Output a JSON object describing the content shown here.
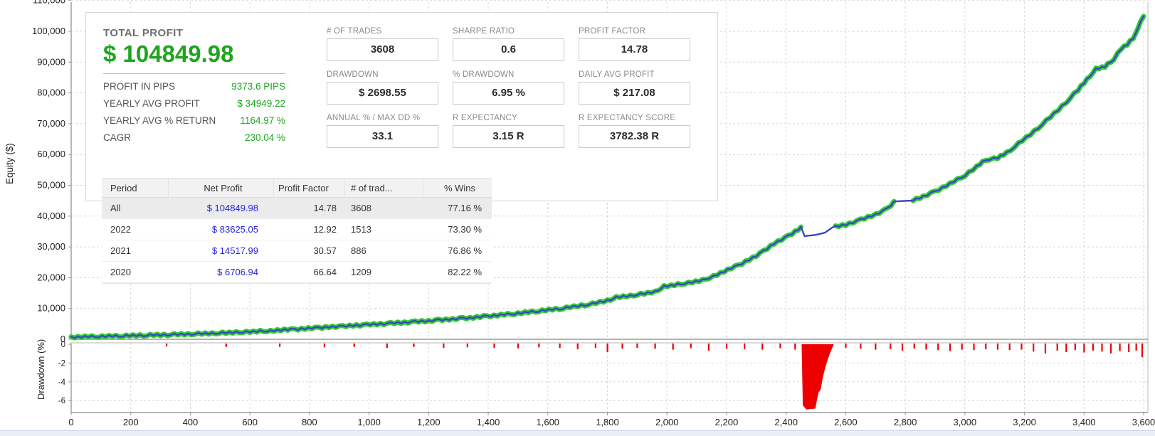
{
  "colors": {
    "profit_green": "#1ea51e",
    "net_profit_blue": "#2525dd",
    "curve_green": "#33cc33",
    "curve_blue": "#3747c4",
    "drawdown_red": "#ee0000",
    "grid_gray": "#d8d8d8",
    "axis_gray": "#9a9a9a",
    "text_dark": "#222222"
  },
  "stats": {
    "total_profit": {
      "label": "TOTAL PROFIT",
      "value": "$ 104849.98"
    },
    "detail_rows": [
      {
        "label": "PROFIT IN PIPS",
        "value": "9373.6 PIPS"
      },
      {
        "label": "YEARLY AVG PROFIT",
        "value": "$ 34949.22"
      },
      {
        "label": "YEARLY AVG % RETURN",
        "value": "1164.97 %"
      },
      {
        "label": "CAGR",
        "value": "230.04 %"
      }
    ],
    "boxes": [
      {
        "label": "# OF TRADES",
        "value": "3608"
      },
      {
        "label": "SHARPE RATIO",
        "value": "0.6"
      },
      {
        "label": "PROFIT FACTOR",
        "value": "14.78"
      },
      {
        "label": "DRAWDOWN",
        "value": "$ 2698.55"
      },
      {
        "label": "% DRAWDOWN",
        "value": "6.95 %"
      },
      {
        "label": "DAILY AVG PROFIT",
        "value": "$ 217.08"
      },
      {
        "label": "ANNUAL % / MAX DD %",
        "value": "33.1"
      },
      {
        "label": "R EXPECTANCY",
        "value": "3.15 R"
      },
      {
        "label": "R EXPECTANCY SCORE",
        "value": "3782.38 R"
      }
    ]
  },
  "table": {
    "columns": [
      "Period",
      "Net Profit",
      "Profit Factor",
      "# of trad...",
      "% Wins"
    ],
    "rows": [
      {
        "period": "All",
        "net_profit": "$ 104849.98",
        "profit_factor": "14.78",
        "trades": "3608",
        "wins": "77.16 %",
        "selected": true
      },
      {
        "period": "2022",
        "net_profit": "$ 83625.05",
        "profit_factor": "12.92",
        "trades": "1513",
        "wins": "73.30 %",
        "selected": false
      },
      {
        "period": "2021",
        "net_profit": "$ 14517.99",
        "profit_factor": "30.57",
        "trades": "886",
        "wins": "76.86 %",
        "selected": false
      },
      {
        "period": "2020",
        "net_profit": "$ 6706.94",
        "profit_factor": "66.64",
        "trades": "1209",
        "wins": "82.22 %",
        "selected": false
      }
    ]
  },
  "chart_data": {
    "type": "line",
    "title": "",
    "xlabel": "",
    "xlim": [
      0,
      3600
    ],
    "xticks": [
      0,
      200,
      400,
      600,
      800,
      1000,
      1200,
      1400,
      1600,
      1800,
      2000,
      2200,
      2400,
      2600,
      2800,
      3000,
      3200,
      3400,
      3600
    ],
    "xtick_labels": [
      "0",
      "200",
      "400",
      "600",
      "800",
      "1,000",
      "1,200",
      "1,400",
      "1,600",
      "1,800",
      "2,000",
      "2,200",
      "2,400",
      "2,600",
      "2,800",
      "3,000",
      "3,200",
      "3,400",
      "3,600"
    ],
    "equity_panel": {
      "ylabel": "Equity ($)",
      "ylim": [
        0,
        110000
      ],
      "yticks": [
        0,
        10000,
        20000,
        30000,
        40000,
        50000,
        60000,
        70000,
        80000,
        90000,
        100000,
        110000
      ],
      "ytick_labels": [
        "0",
        "10,000",
        "20,000",
        "30,000",
        "40,000",
        "50,000",
        "60,000",
        "70,000",
        "80,000",
        "90,000",
        "100,000",
        "110,000"
      ],
      "grid": true
    },
    "equity_curve": {
      "series_name": "Equity",
      "points": [
        [
          0,
          700
        ],
        [
          150,
          1000
        ],
        [
          300,
          1400
        ],
        [
          450,
          1900
        ],
        [
          600,
          2500
        ],
        [
          750,
          3200
        ],
        [
          900,
          4100
        ],
        [
          1050,
          5000
        ],
        [
          1200,
          6000
        ],
        [
          1350,
          7100
        ],
        [
          1500,
          8400
        ],
        [
          1650,
          10000
        ],
        [
          1750,
          11500
        ],
        [
          1800,
          12600
        ],
        [
          1830,
          13600
        ],
        [
          1900,
          14500
        ],
        [
          1960,
          15500
        ],
        [
          1990,
          17200
        ],
        [
          2060,
          18200
        ],
        [
          2120,
          19200
        ],
        [
          2180,
          21500
        ],
        [
          2240,
          24000
        ],
        [
          2300,
          27000
        ],
        [
          2360,
          31000
        ],
        [
          2420,
          34200
        ],
        [
          2450,
          36200
        ],
        [
          2462,
          33500
        ],
        [
          2500,
          33900
        ],
        [
          2530,
          34600
        ],
        [
          2555,
          36300
        ],
        [
          2600,
          37200
        ],
        [
          2650,
          38800
        ],
        [
          2700,
          40600
        ],
        [
          2740,
          42400
        ],
        [
          2762,
          44600
        ],
        [
          2770,
          44800
        ],
        [
          2815,
          45000
        ],
        [
          2860,
          46300
        ],
        [
          2900,
          48000
        ],
        [
          2950,
          50500
        ],
        [
          3000,
          53200
        ],
        [
          3040,
          56000
        ],
        [
          3070,
          58300
        ],
        [
          3110,
          58800
        ],
        [
          3140,
          60500
        ],
        [
          3180,
          63500
        ],
        [
          3220,
          66500
        ],
        [
          3260,
          69800
        ],
        [
          3300,
          73300
        ],
        [
          3340,
          77000
        ],
        [
          3380,
          81000
        ],
        [
          3410,
          84500
        ],
        [
          3440,
          87800
        ],
        [
          3470,
          88600
        ],
        [
          3500,
          91000
        ],
        [
          3525,
          94500
        ],
        [
          3545,
          95800
        ],
        [
          3565,
          97800
        ],
        [
          3580,
          101000
        ],
        [
          3600,
          105200
        ]
      ],
      "drawdown_gaps": [
        [
          2455,
          2558
        ],
        [
          2766,
          2818
        ]
      ]
    },
    "drawdown_panel": {
      "ylabel": "Drawdown (%)",
      "ylim": [
        -7.2,
        0
      ],
      "yticks": [
        0,
        -2,
        -4,
        -6
      ],
      "ytick_labels": [
        "0",
        "-2",
        "-4",
        "-6"
      ],
      "grid": true
    },
    "drawdown_spikes": [
      [
        320,
        0.15
      ],
      [
        520,
        0.2
      ],
      [
        700,
        0.2
      ],
      [
        850,
        0.25
      ],
      [
        950,
        0.2
      ],
      [
        1060,
        0.3
      ],
      [
        1150,
        0.2
      ],
      [
        1250,
        0.3
      ],
      [
        1330,
        0.25
      ],
      [
        1420,
        0.3
      ],
      [
        1500,
        0.35
      ],
      [
        1570,
        0.25
      ],
      [
        1640,
        0.3
      ],
      [
        1700,
        0.45
      ],
      [
        1760,
        0.3
      ],
      [
        1800,
        0.75
      ],
      [
        1850,
        0.4
      ],
      [
        1900,
        0.3
      ],
      [
        1960,
        0.4
      ],
      [
        2020,
        0.5
      ],
      [
        2080,
        0.35
      ],
      [
        2140,
        0.6
      ],
      [
        2200,
        0.4
      ],
      [
        2260,
        0.45
      ],
      [
        2320,
        0.5
      ],
      [
        2380,
        0.35
      ],
      [
        2430,
        0.5
      ],
      [
        2600,
        0.3
      ],
      [
        2650,
        0.4
      ],
      [
        2700,
        0.5
      ],
      [
        2750,
        0.45
      ],
      [
        2790,
        0.6
      ],
      [
        2830,
        0.4
      ],
      [
        2870,
        0.5
      ],
      [
        2910,
        0.55
      ],
      [
        2950,
        0.65
      ],
      [
        2990,
        0.5
      ],
      [
        3030,
        0.55
      ],
      [
        3070,
        0.45
      ],
      [
        3110,
        0.5
      ],
      [
        3150,
        0.55
      ],
      [
        3190,
        0.5
      ],
      [
        3230,
        0.7
      ],
      [
        3270,
        0.9
      ],
      [
        3310,
        0.6
      ],
      [
        3340,
        0.75
      ],
      [
        3370,
        0.55
      ],
      [
        3400,
        0.8
      ],
      [
        3430,
        0.6
      ],
      [
        3460,
        0.7
      ],
      [
        3490,
        0.9
      ],
      [
        3520,
        0.65
      ],
      [
        3550,
        0.75
      ],
      [
        3575,
        0.6
      ],
      [
        3595,
        1.3
      ]
    ],
    "major_drawdown": {
      "max_pct": 6.95,
      "polygon": [
        [
          2452,
          0
        ],
        [
          2456,
          6.5
        ],
        [
          2468,
          6.95
        ],
        [
          2498,
          6.85
        ],
        [
          2508,
          5.2
        ],
        [
          2516,
          4.8
        ],
        [
          2524,
          3.4
        ],
        [
          2532,
          2.4
        ],
        [
          2540,
          1.6
        ],
        [
          2548,
          0.9
        ],
        [
          2556,
          0.3
        ],
        [
          2560,
          0
        ]
      ]
    }
  }
}
